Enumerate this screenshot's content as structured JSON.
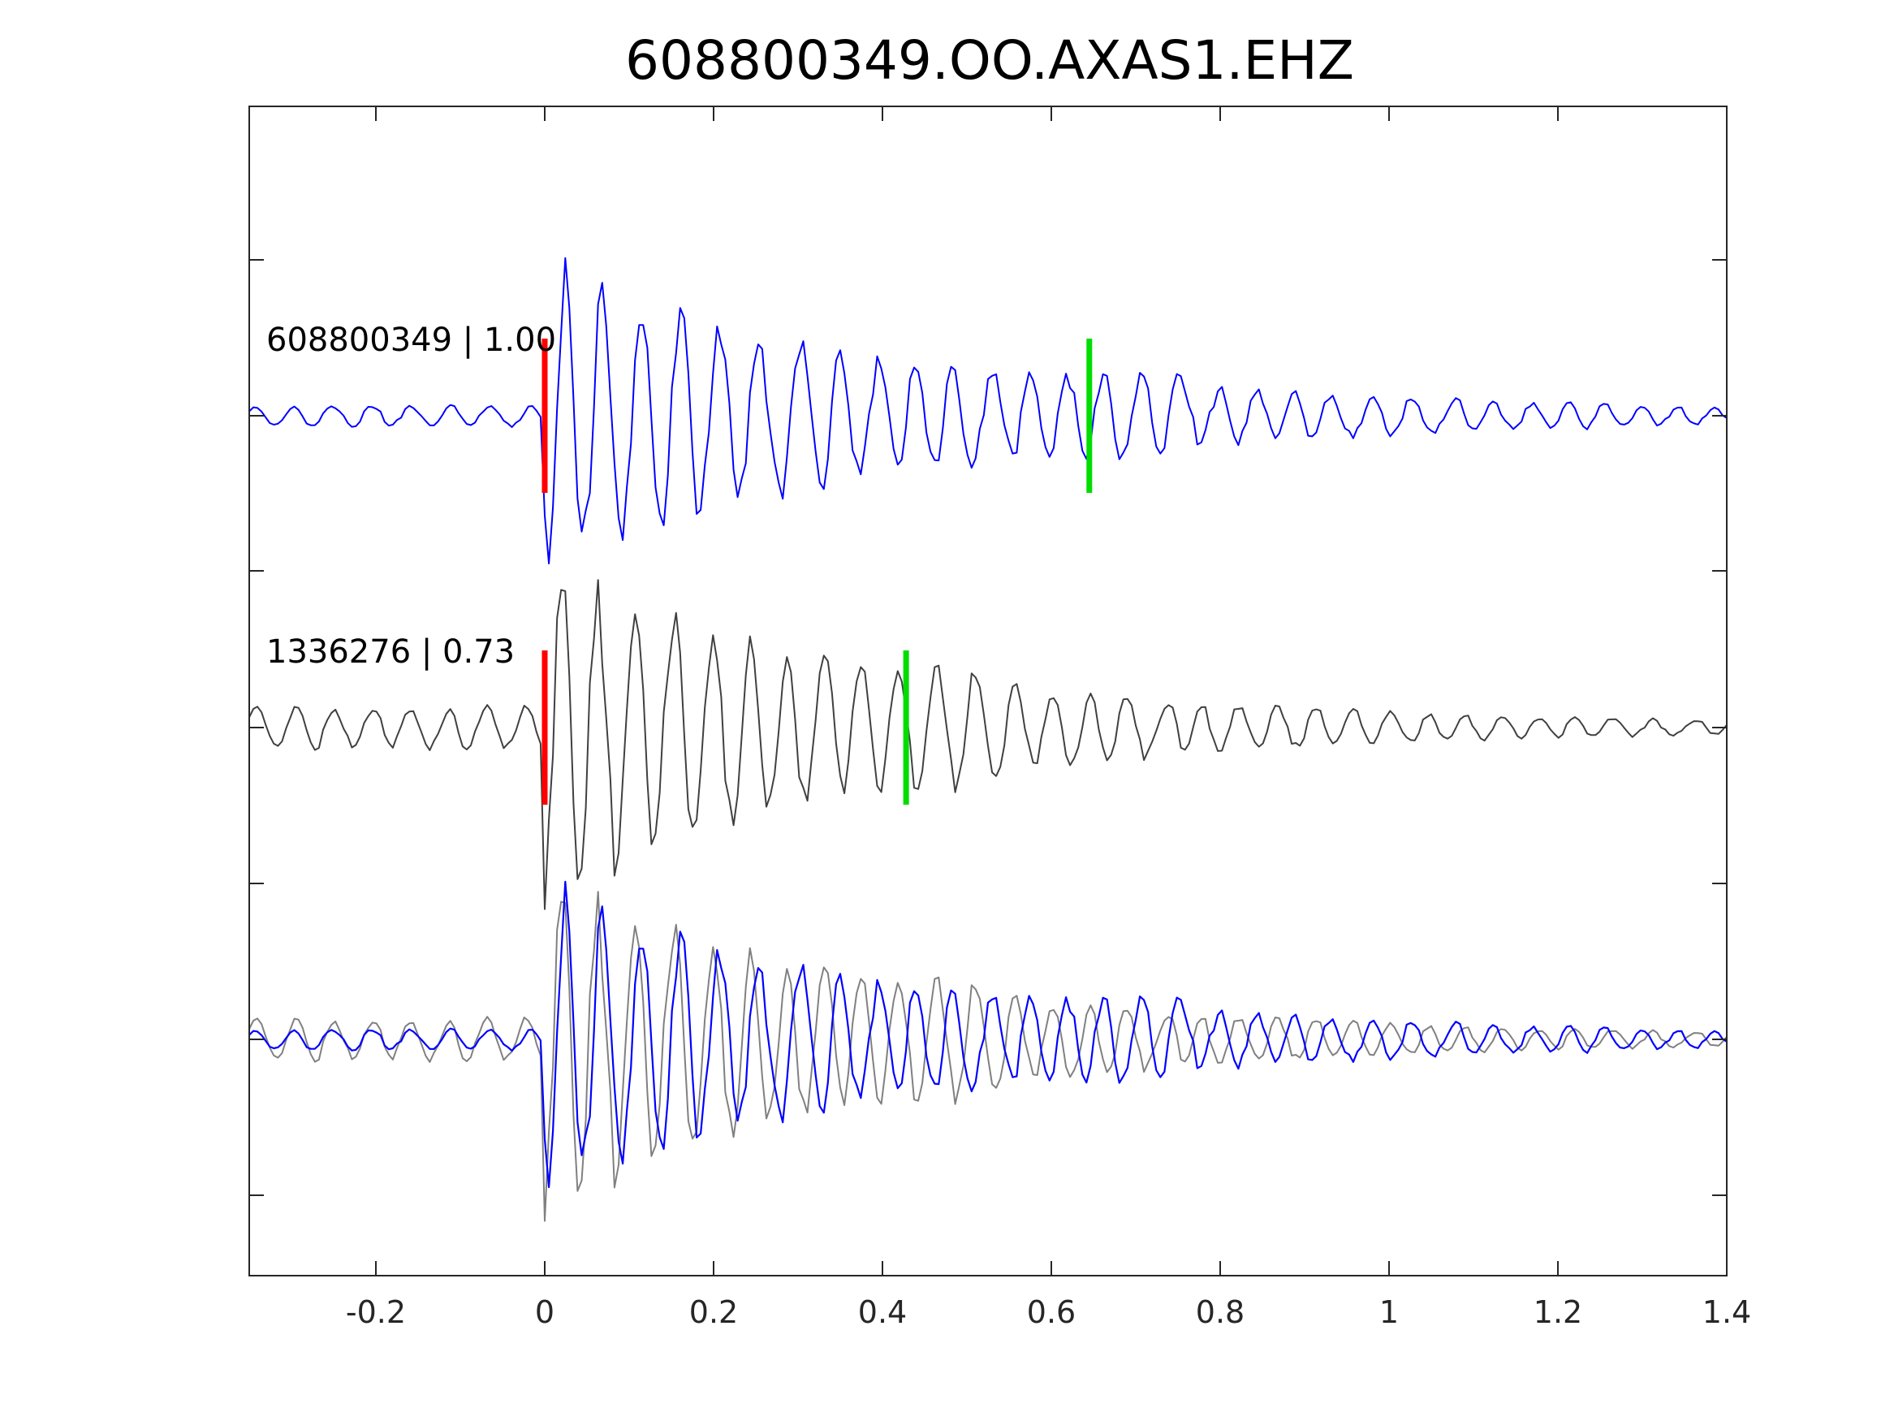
{
  "chart_data": {
    "type": "line",
    "title": "608800349.OO.AXAS1.EHZ",
    "xlabel": "",
    "ylabel": "",
    "xlim": [
      -0.35,
      1.4
    ],
    "x_ticks": [
      -0.2,
      0,
      0.2,
      0.4,
      0.6,
      0.8,
      1,
      1.2,
      1.4
    ],
    "x_tick_labels": [
      "-0.2",
      "0",
      "0.2",
      "0.4",
      "0.6",
      "0.8",
      "1",
      "1.2",
      "1.4"
    ],
    "y_ticks_count": 7,
    "grid": false,
    "traces": [
      {
        "name": "608800349 | 1.00",
        "color": "#0000ff",
        "p_pick": 0.0,
        "s_pick": 0.645,
        "p_pick_color": "#ff0000",
        "s_pick_color": "#00dd00"
      },
      {
        "name": "1336276 | 0.73",
        "color": "#404040",
        "p_pick": 0.0,
        "s_pick": 0.428,
        "p_pick_color": "#ff0000",
        "s_pick_color": "#00dd00"
      },
      {
        "name": "",
        "overlay": true,
        "colors": [
          "#808080",
          "#0000ff"
        ]
      }
    ]
  }
}
